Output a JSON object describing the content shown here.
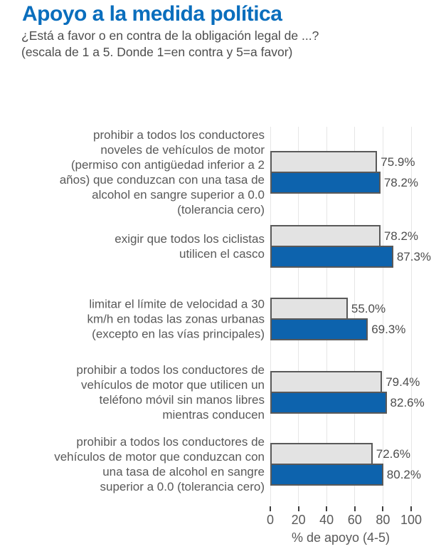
{
  "header": {
    "title": "Apoyo a la medida política",
    "subtitle_line1": "¿Está a favor o en contra de la obligación legal de ...?",
    "subtitle_line2": "(escala de 1 a 5. Donde 1=en contra y 5=a favor)"
  },
  "colors": {
    "title_blue": "#0a6ebd",
    "bar_gray": "#e3e3e3",
    "bar_blue": "#0d63ad",
    "bar_border": "#595959",
    "label_text": "#595959",
    "value_text": "#4d4d4d",
    "gridline": "#e6e6e6",
    "tick": "#3f3f3f"
  },
  "chart_data": {
    "type": "bar",
    "orientation": "horizontal",
    "title": "Apoyo a la medida política",
    "xlabel": "% de apoyo (4-5)",
    "xlim": [
      0,
      100
    ],
    "xticks": [
      0,
      20,
      40,
      60,
      80,
      100
    ],
    "grid": true,
    "legend_position": "none",
    "value_label_format": "0.0%",
    "categories": [
      "prohibir a todos los conductores\nnoveles de vehículos de motor\n(permiso con antigüedad inferior a 2\naños) que conduzcan con una tasa de\nalcohol en sangre superior a 0.0\n(tolerancia cero)",
      "exigir que todos los ciclistas\nutilicen el casco",
      "limitar el límite de velocidad a 30\nkm/h en todas las zonas urbanas\n(excepto en las vías principales)",
      "prohibir a todos los conductores de\nvehículos de motor que utilicen un\nteléfono móvil sin manos libres\nmientras conducen",
      "prohibir a todos los conductores de\nvehículos de motor que conduzcan con\nuna tasa de alcohol en sangre\nsuperior a 0.0 (tolerancia cero)"
    ],
    "series": [
      {
        "name": "barra gris",
        "color": "#e3e3e3",
        "values": [
          75.9,
          78.2,
          55.0,
          79.4,
          72.6
        ]
      },
      {
        "name": "barra azul",
        "color": "#0d63ad",
        "values": [
          78.2,
          87.3,
          69.3,
          82.6,
          80.2
        ]
      }
    ]
  }
}
